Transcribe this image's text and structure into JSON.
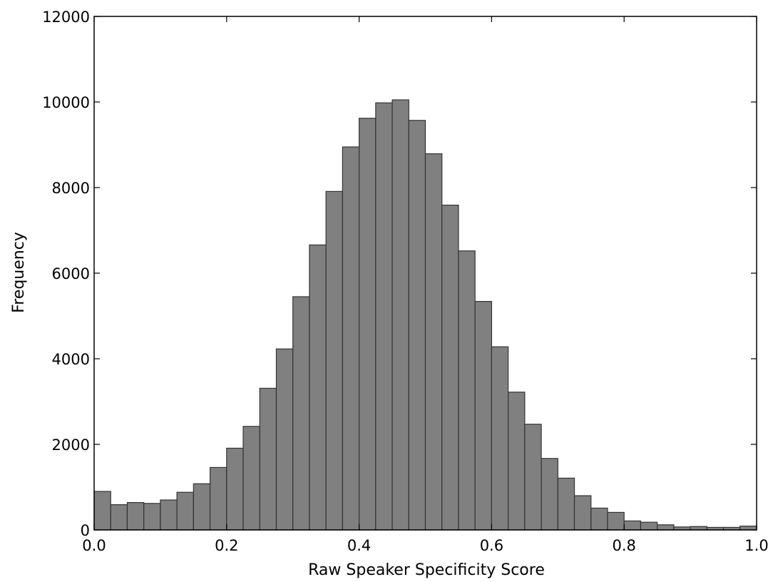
{
  "chart_data": {
    "type": "bar",
    "title": "",
    "xlabel": "Raw Speaker Specificity Score",
    "ylabel": "Frequency",
    "xlim": [
      0.0,
      1.0
    ],
    "ylim": [
      0,
      12000
    ],
    "grid": false,
    "bin_width": 0.025,
    "bin_starts": [
      0.0,
      0.025,
      0.05,
      0.075,
      0.1,
      0.125,
      0.15,
      0.175,
      0.2,
      0.225,
      0.25,
      0.275,
      0.3,
      0.325,
      0.35,
      0.375,
      0.4,
      0.425,
      0.45,
      0.475,
      0.5,
      0.525,
      0.55,
      0.575,
      0.6,
      0.625,
      0.65,
      0.675,
      0.7,
      0.725,
      0.75,
      0.775,
      0.8,
      0.825,
      0.85,
      0.875,
      0.9,
      0.925,
      0.95,
      0.975
    ],
    "values": [
      900,
      590,
      640,
      620,
      700,
      880,
      1080,
      1460,
      1910,
      2420,
      3310,
      4230,
      5450,
      6660,
      7910,
      8950,
      9620,
      9980,
      10050,
      9570,
      8790,
      7590,
      6520,
      5340,
      4280,
      3220,
      2470,
      1670,
      1210,
      800,
      510,
      410,
      210,
      180,
      120,
      70,
      80,
      60,
      60,
      90
    ],
    "x_ticks": [
      "0.0",
      "0.2",
      "0.4",
      "0.6",
      "0.8",
      "1.0"
    ],
    "x_tick_values": [
      0.0,
      0.2,
      0.4,
      0.6,
      0.8,
      1.0
    ],
    "y_ticks": [
      "0",
      "2000",
      "4000",
      "6000",
      "8000",
      "10000",
      "12000"
    ],
    "y_tick_values": [
      0,
      2000,
      4000,
      6000,
      8000,
      10000,
      12000
    ],
    "bar_color": "#808080",
    "edge_color": "#333333"
  }
}
